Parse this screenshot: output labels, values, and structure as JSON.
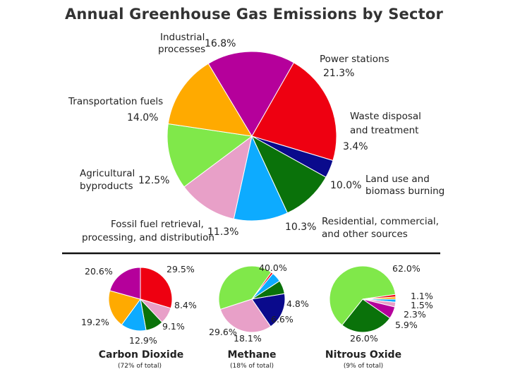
{
  "chart_data": [
    {
      "type": "pie",
      "title": "Annual Greenhouse Gas Emissions by Sector",
      "slices": [
        {
          "label": "Industrial processes",
          "value": 16.8,
          "pct": "16.8%",
          "color": "#b5009b"
        },
        {
          "label": "Power stations",
          "value": 21.3,
          "pct": "21.3%",
          "color": "#ee0011"
        },
        {
          "label": "Waste disposal and treatment",
          "value": 3.4,
          "pct": "3.4%",
          "color": "#0a0a8c"
        },
        {
          "label": "Land use and biomass burning",
          "value": 10.0,
          "pct": "10.0%",
          "color": "#0a720a"
        },
        {
          "label": "Residential, commercial, and other sources",
          "value": 10.3,
          "pct": "10.3%",
          "color": "#0dabff"
        },
        {
          "label": "Fossil fuel retrieval, processing, and distribution",
          "value": 11.3,
          "pct": "11.3%",
          "color": "#e8a0c8"
        },
        {
          "label": "Agricultural byproducts",
          "value": 12.5,
          "pct": "12.5%",
          "color": "#80e84a"
        },
        {
          "label": "Transportation fuels",
          "value": 14.0,
          "pct": "14.0%",
          "color": "#ffaa00"
        }
      ]
    },
    {
      "type": "pie",
      "title": "Carbon Dioxide",
      "subtitle": "(72% of total)",
      "slices": [
        {
          "value": 29.5,
          "pct": "29.5%",
          "color": "#ee0011"
        },
        {
          "value": 8.4,
          "pct": "8.4%",
          "color": "#e8a0c8"
        },
        {
          "value": 9.1,
          "pct": "9.1%",
          "color": "#0a720a"
        },
        {
          "value": 12.9,
          "pct": "12.9%",
          "color": "#0dabff"
        },
        {
          "value": 19.2,
          "pct": "19.2%",
          "color": "#ffaa00"
        },
        {
          "value": 20.6,
          "pct": "20.6%",
          "color": "#b5009b"
        }
      ]
    },
    {
      "type": "pie",
      "title": "Methane",
      "subtitle": "(18% of total)",
      "slices": [
        {
          "value": 40.0,
          "pct": "40.0%",
          "color": "#80e84a"
        },
        {
          "value": 1.0,
          "pct": "",
          "color": "#ee0011"
        },
        {
          "value": 4.8,
          "pct": "4.8%",
          "color": "#0dabff"
        },
        {
          "value": 6.6,
          "pct": "6.6%",
          "color": "#0a720a"
        },
        {
          "value": 18.1,
          "pct": "18.1%",
          "color": "#0a0a8c"
        },
        {
          "value": 29.6,
          "pct": "29.6%",
          "color": "#e8a0c8"
        }
      ]
    },
    {
      "type": "pie",
      "title": "Nitrous Oxide",
      "subtitle": "(9% of total)",
      "slices": [
        {
          "value": 1.1,
          "pct": "1.1%",
          "color": "#ffaa00"
        },
        {
          "value": 1.5,
          "pct": "1.5%",
          "color": "#0dabff"
        },
        {
          "value": 2.3,
          "pct": "2.3%",
          "color": "#e8a0c8"
        },
        {
          "value": 5.9,
          "pct": "5.9%",
          "color": "#b5009b"
        },
        {
          "value": 26.0,
          "pct": "26.0%",
          "color": "#0a720a"
        },
        {
          "value": 62.0,
          "pct": "62.0%",
          "color": "#80e84a"
        },
        {
          "value": 1.2,
          "pct": "",
          "color": "#ee0011"
        }
      ]
    }
  ]
}
